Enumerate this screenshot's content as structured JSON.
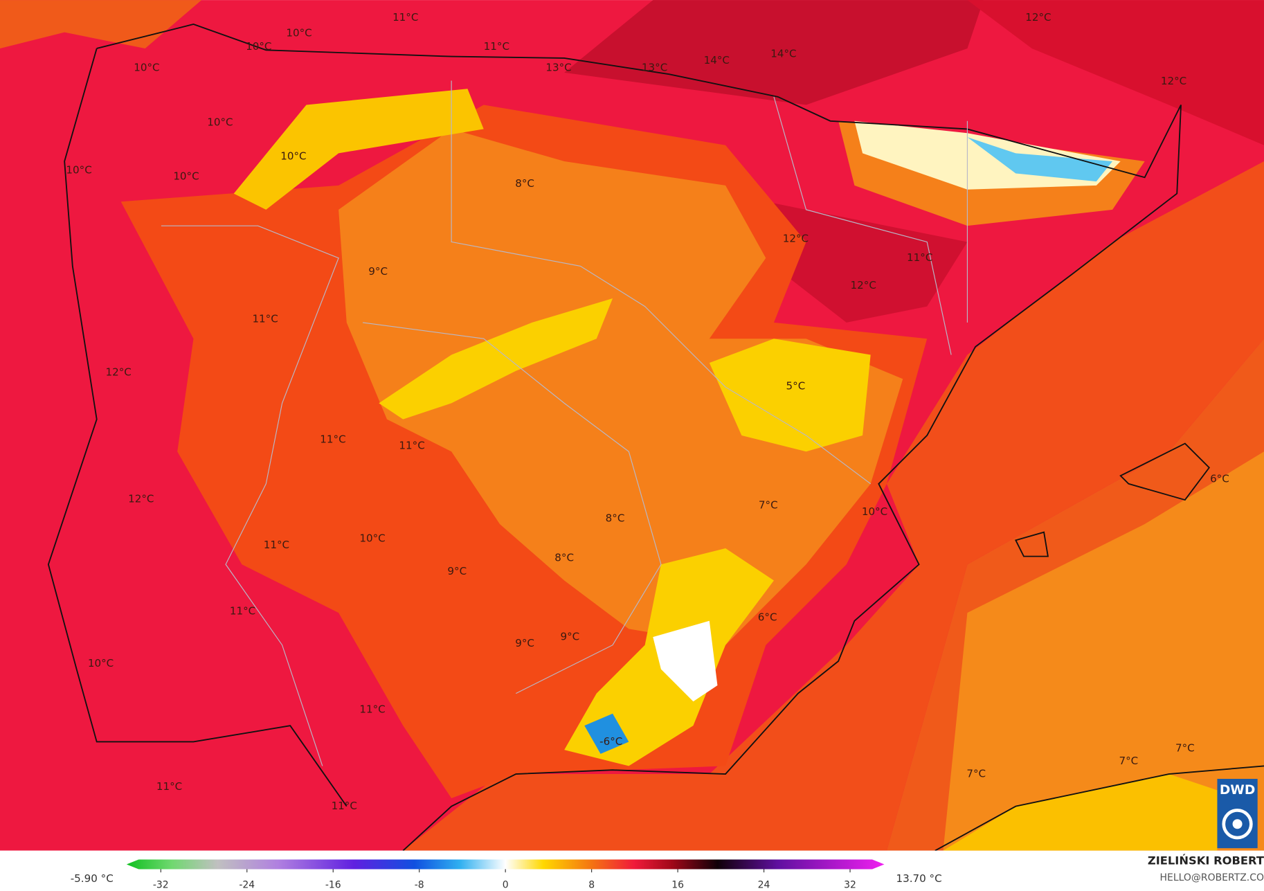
{
  "labels": [
    "11°C",
    "10°C",
    "10°C",
    "10°C",
    "11°C",
    "13°C",
    "13°C",
    "14°C",
    "14°C",
    "12°C",
    "12°C",
    "10°C",
    "10°C",
    "10°C",
    "10°C",
    "8°C",
    "12°C",
    "11°C",
    "12°C",
    "9°C",
    "11°C",
    "12°C",
    "5°C",
    "11°C",
    "11°C",
    "12°C",
    "7°C",
    "10°C",
    "6°C",
    "8°C",
    "10°C",
    "11°C",
    "8°C",
    "9°C",
    "11°C",
    "6°C",
    "9°C",
    "9°C",
    "10°C",
    "11°C",
    "-6°C",
    "7°C",
    "7°C",
    "7°C",
    "11°C",
    "11°C"
  ],
  "colorbar": {
    "min_label": "-5.90 °C",
    "max_label": "13.70 °C",
    "ticks": [
      -32,
      -24,
      -16,
      -8,
      0,
      8,
      16,
      24,
      32
    ]
  },
  "credit": {
    "name": "ZIELIŃSKI ROBERT",
    "email": "HELLO@ROBERTZ.CO"
  },
  "logo": "DWD"
}
